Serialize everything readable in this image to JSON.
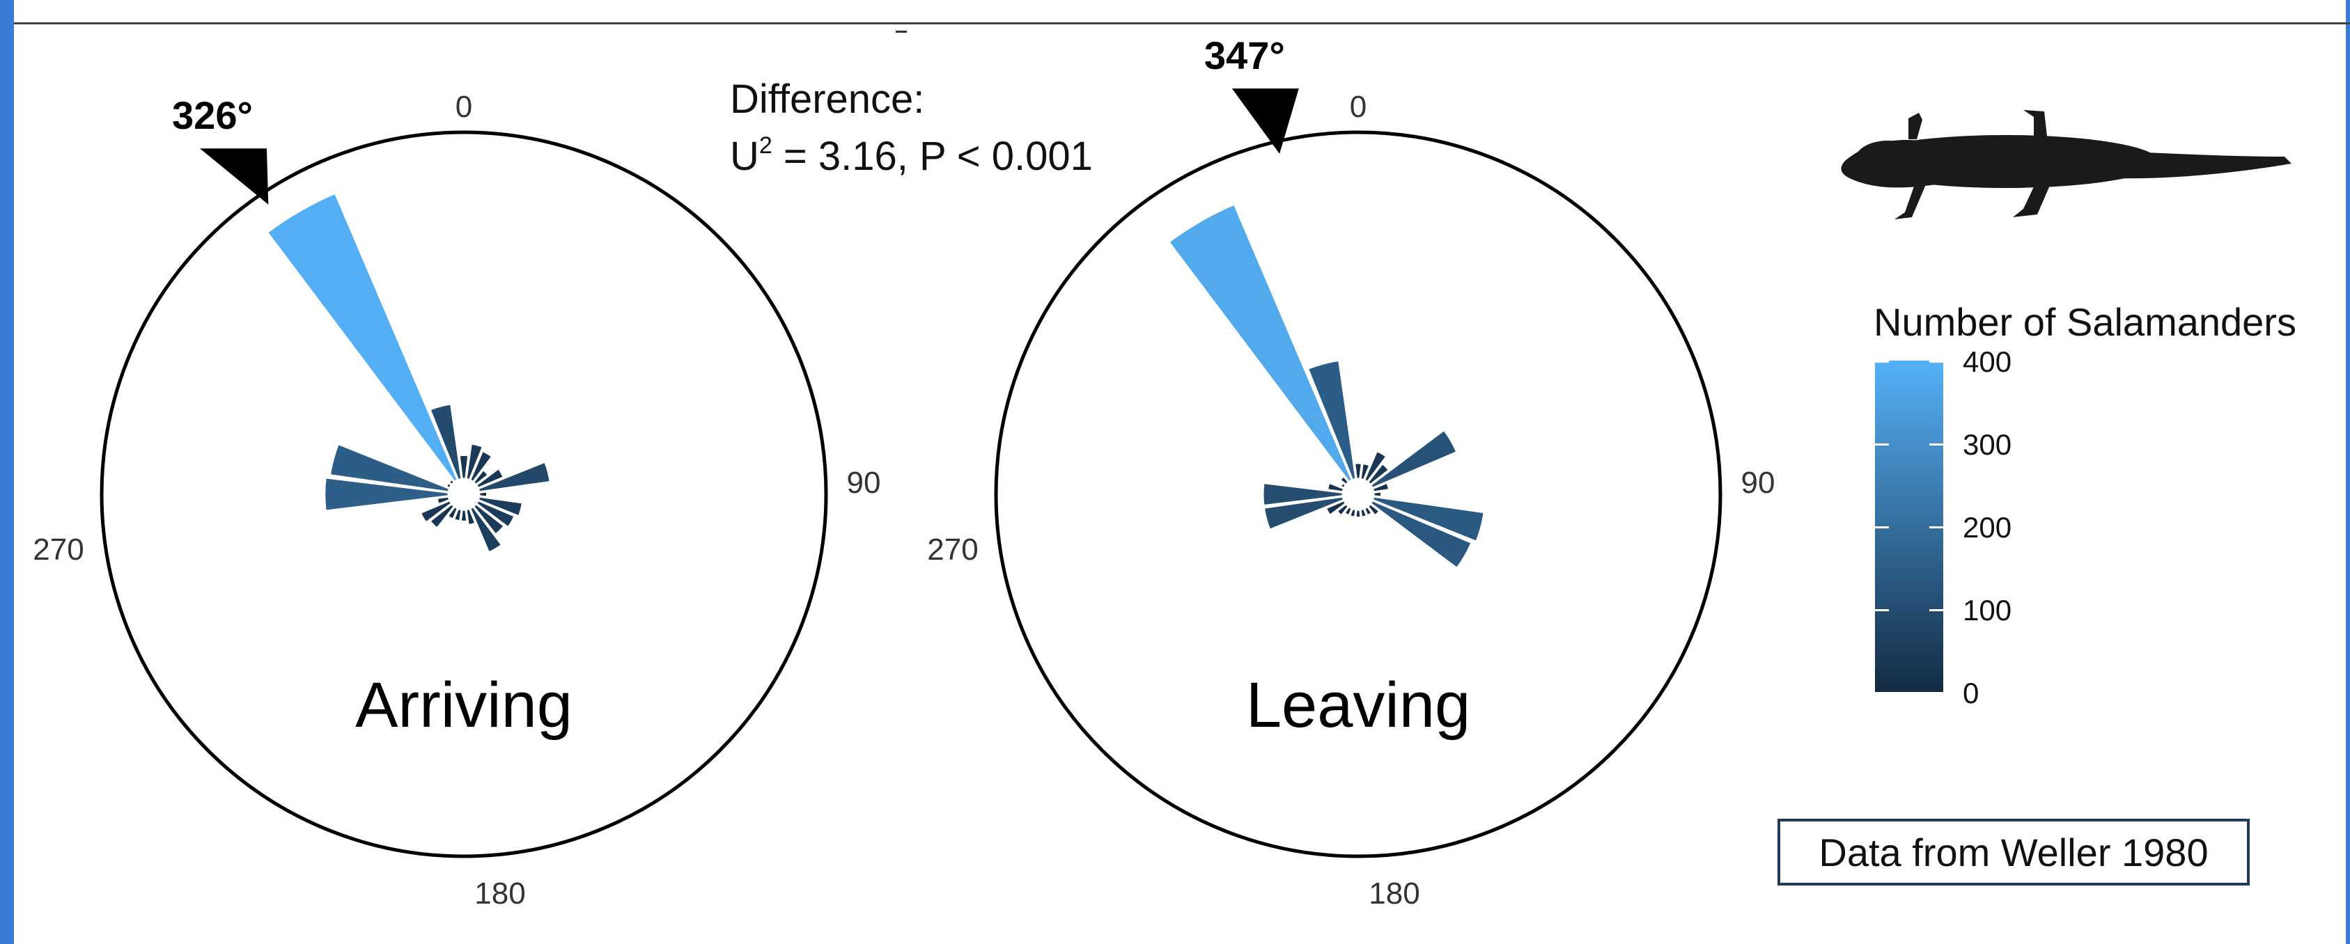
{
  "chart_data": [
    {
      "type": "rose",
      "panel_label": "Arriving",
      "mean_direction_label": "326°",
      "mean_direction": 326,
      "angle_labels": [
        "0",
        "90",
        "180",
        "270"
      ],
      "bins": [
        {
          "dir": 0,
          "count": 30
        },
        {
          "dir": 15,
          "count": 45
        },
        {
          "dir": 30,
          "count": 40
        },
        {
          "dir": 45,
          "count": 20
        },
        {
          "dir": 60,
          "count": 35
        },
        {
          "dir": 75,
          "count": 90
        },
        {
          "dir": 90,
          "count": 10
        },
        {
          "dir": 105,
          "count": 55
        },
        {
          "dir": 120,
          "count": 50
        },
        {
          "dir": 135,
          "count": 45
        },
        {
          "dir": 150,
          "count": 60
        },
        {
          "dir": 165,
          "count": 20
        },
        {
          "dir": 180,
          "count": 15
        },
        {
          "dir": 195,
          "count": 15
        },
        {
          "dir": 210,
          "count": 15
        },
        {
          "dir": 225,
          "count": 35
        },
        {
          "dir": 240,
          "count": 40
        },
        {
          "dir": 255,
          "count": 15
        },
        {
          "dir": 270,
          "count": 155
        },
        {
          "dir": 285,
          "count": 150
        },
        {
          "dir": 300,
          "count": 5
        },
        {
          "dir": 315,
          "count": 5
        },
        {
          "dir": 330,
          "count": 390
        },
        {
          "dir": 345,
          "count": 95
        }
      ]
    },
    {
      "type": "rose",
      "panel_label": "Leaving",
      "mean_direction_label": "347°",
      "mean_direction": 347,
      "angle_labels": [
        "0",
        "90",
        "180",
        "270"
      ],
      "bins": [
        {
          "dir": 0,
          "count": 20
        },
        {
          "dir": 15,
          "count": 20
        },
        {
          "dir": 30,
          "count": 40
        },
        {
          "dir": 45,
          "count": 30
        },
        {
          "dir": 60,
          "count": 115
        },
        {
          "dir": 75,
          "count": 20
        },
        {
          "dir": 90,
          "count": 10
        },
        {
          "dir": 105,
          "count": 140
        },
        {
          "dir": 120,
          "count": 135
        },
        {
          "dir": 135,
          "count": 15
        },
        {
          "dir": 150,
          "count": 10
        },
        {
          "dir": 165,
          "count": 10
        },
        {
          "dir": 180,
          "count": 10
        },
        {
          "dir": 195,
          "count": 10
        },
        {
          "dir": 210,
          "count": 10
        },
        {
          "dir": 225,
          "count": 15
        },
        {
          "dir": 240,
          "count": 25
        },
        {
          "dir": 255,
          "count": 100
        },
        {
          "dir": 270,
          "count": 100
        },
        {
          "dir": 285,
          "count": 20
        },
        {
          "dir": 300,
          "count": 5
        },
        {
          "dir": 315,
          "count": 10
        },
        {
          "dir": 330,
          "count": 375
        },
        {
          "dir": 345,
          "count": 150
        }
      ]
    }
  ],
  "legend": {
    "title": "Number of Salamanders",
    "ticks": [
      "400",
      "300",
      "200",
      "100",
      "0"
    ],
    "low_color": "#132b43",
    "high_color": "#56b1f7",
    "max": 400
  },
  "difference": {
    "line1": "Difference:",
    "line2_prefix": "U",
    "line2_sup": "2",
    "line2_rest": " = 3.16, P < 0.001"
  },
  "source_note": "Data from Weller 1980",
  "icon": "salamander-silhouette"
}
